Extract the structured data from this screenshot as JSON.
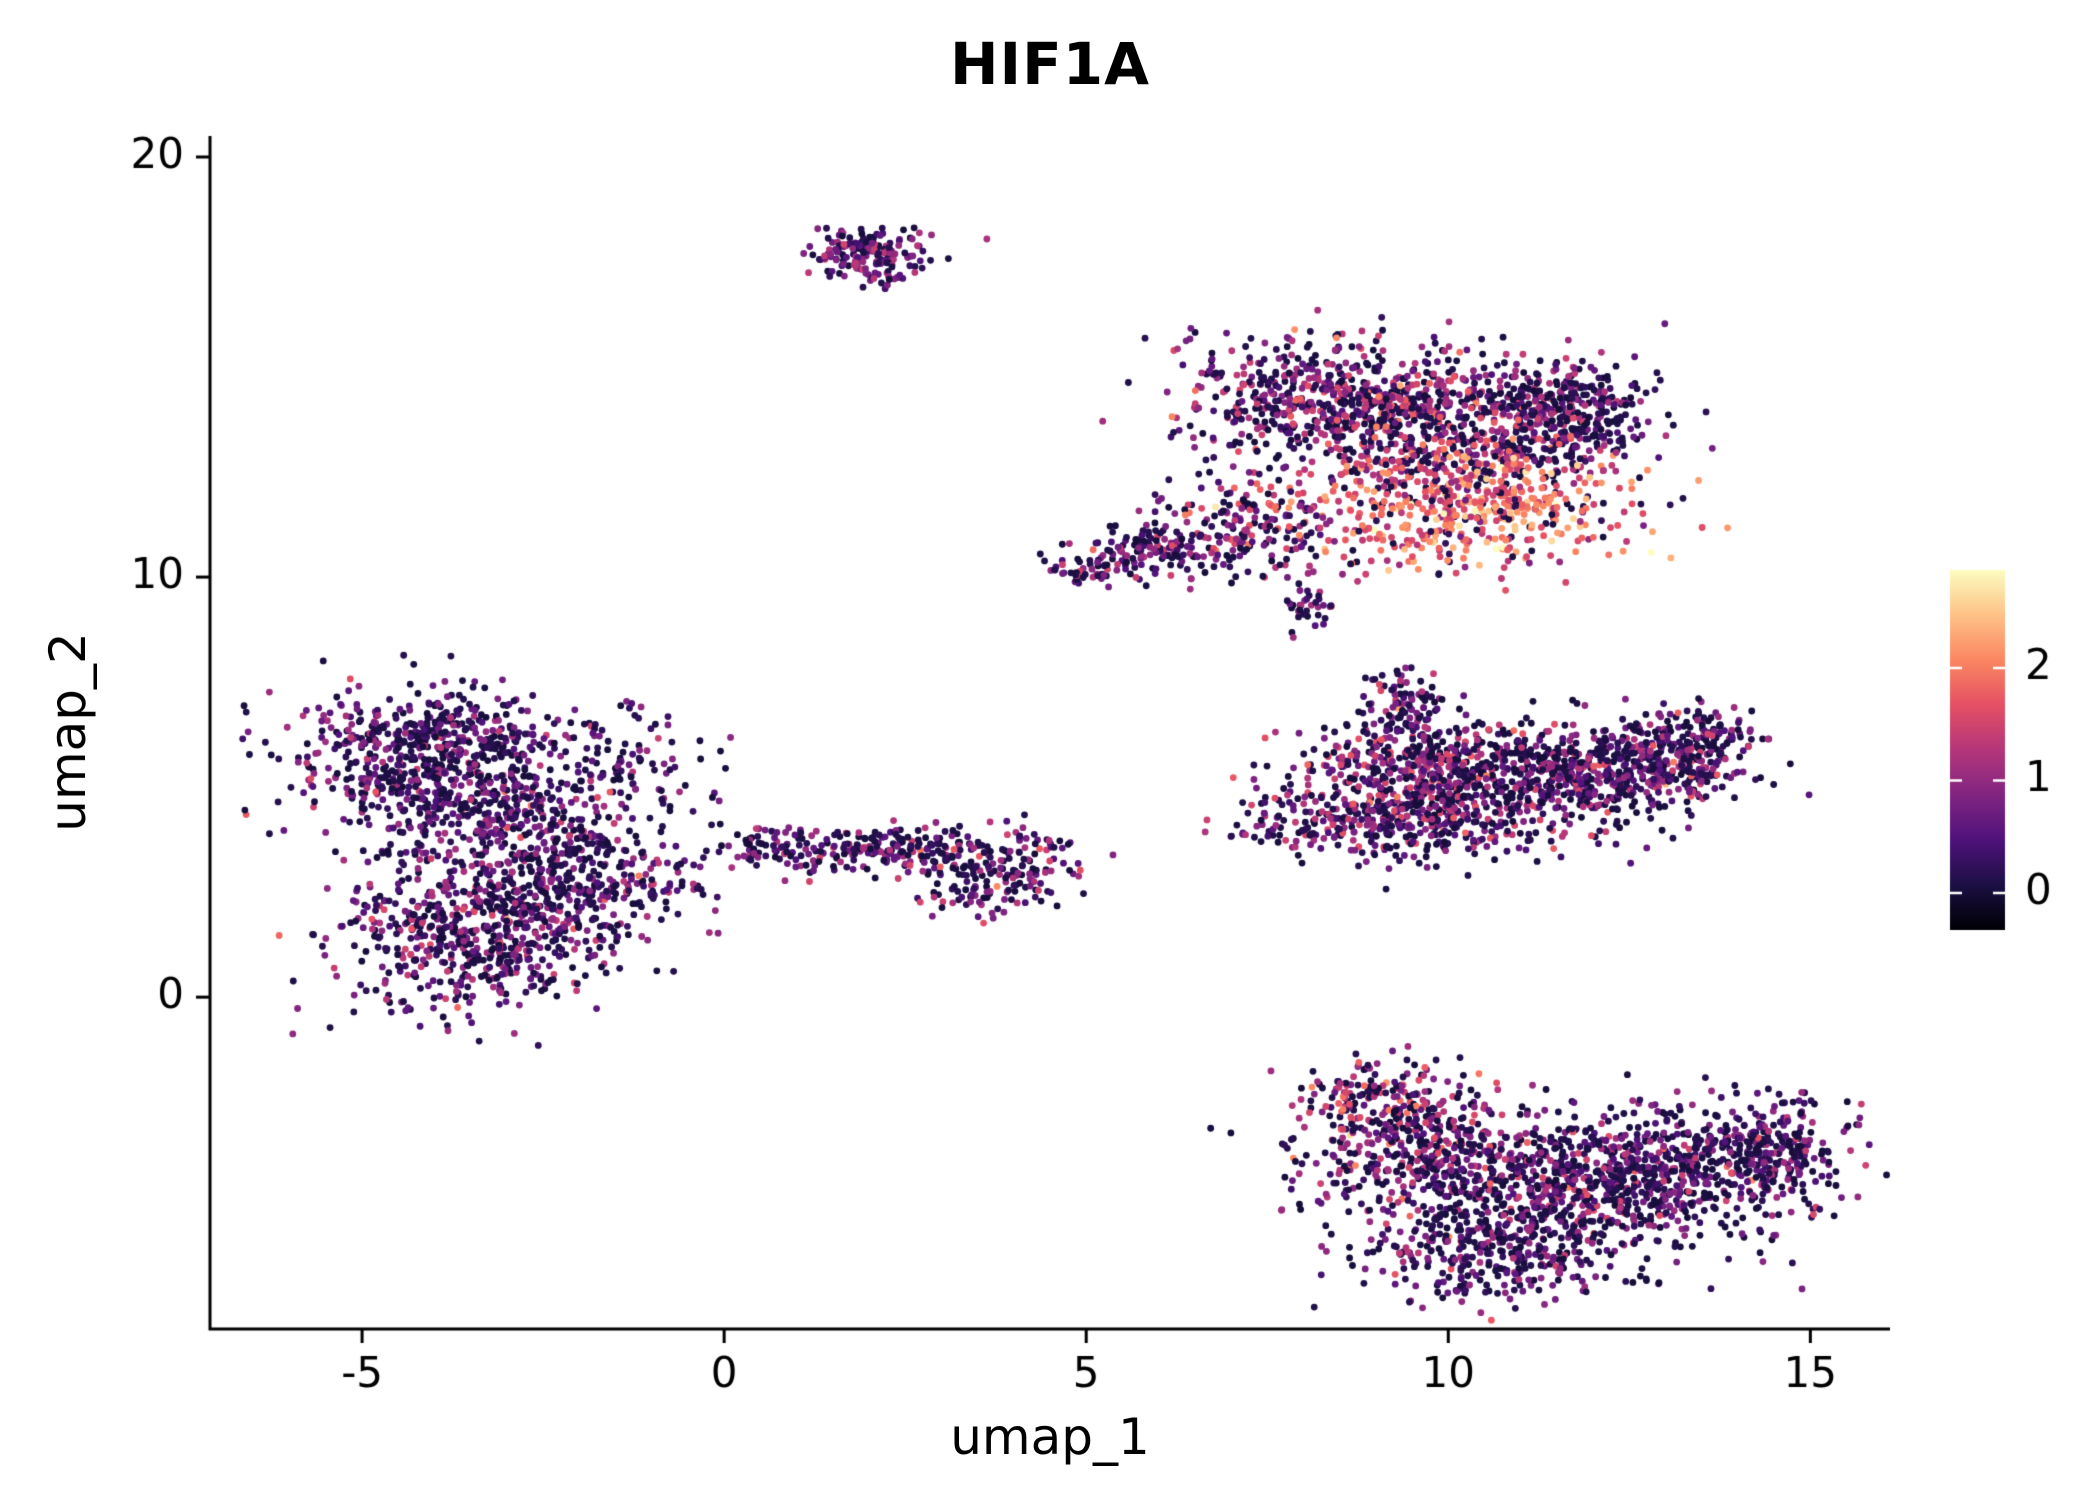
{
  "colors": {
    "background": "#ffffff",
    "axis": "#000000",
    "text": "#000000",
    "colorbar_tick": "#ffffff"
  },
  "chart_data": {
    "type": "scatter",
    "title": "HIF1A",
    "xlabel": "umap_1",
    "ylabel": "umap_2",
    "xlim": [
      -7.1,
      16.1
    ],
    "ylim": [
      -7.9,
      20.5
    ],
    "x_ticks": [
      -5,
      0,
      5,
      10,
      15
    ],
    "y_ticks": [
      0,
      10,
      20
    ],
    "grid": false,
    "point_radius": 3.4,
    "seed": 42,
    "colorbar": {
      "position": "right",
      "label_values": [
        0,
        1,
        2
      ],
      "value_min": -0.33,
      "value_max": 2.87,
      "colormap": "magma",
      "stops": [
        [
          0,
          0,
          4
        ],
        [
          28,
          16,
          68
        ],
        [
          79,
          18,
          123
        ],
        [
          129,
          37,
          129
        ],
        [
          181,
          54,
          122
        ],
        [
          229,
          80,
          100
        ],
        [
          251,
          135,
          97
        ],
        [
          254,
          194,
          135
        ],
        [
          252,
          253,
          191
        ]
      ]
    },
    "clusters_note": "UMAP feature plot of HIF1A expression; points generated from cluster blob parameters (cx,cy = cluster center in umap coords; sx,sy = gaussian spread; n = points; z = fraction near-zero expression; m,s = mean/sd of expressed values on 0-2.9 scale)",
    "blobs": [
      {
        "cluster": "top-island",
        "n": 160,
        "cx": 2.0,
        "cy": 17.75,
        "sx": 0.38,
        "sy": 0.28,
        "z": 0.35,
        "m": 0.85,
        "s": 0.35
      },
      {
        "cluster": "top-island",
        "n": 25,
        "cx": 2.1,
        "cy": 17.15,
        "sx": 0.22,
        "sy": 0.15,
        "z": 0.35,
        "m": 0.85,
        "s": 0.35
      },
      {
        "cluster": "upper-right-main",
        "n": 550,
        "cx": 8.3,
        "cy": 14.2,
        "sx": 1.0,
        "sy": 0.75,
        "z": 0.4,
        "m": 0.95,
        "s": 0.45
      },
      {
        "cluster": "upper-right-main",
        "n": 450,
        "cx": 10.2,
        "cy": 13.6,
        "sx": 1.0,
        "sy": 0.8,
        "z": 0.35,
        "m": 1.1,
        "s": 0.5
      },
      {
        "cluster": "upper-right-main",
        "n": 300,
        "cx": 11.6,
        "cy": 13.9,
        "sx": 0.65,
        "sy": 0.6,
        "z": 0.55,
        "m": 0.7,
        "s": 0.45
      },
      {
        "cluster": "upper-right-main",
        "n": 550,
        "cx": 10.2,
        "cy": 11.7,
        "sx": 1.25,
        "sy": 0.75,
        "z": 0.15,
        "m": 1.8,
        "s": 0.5
      },
      {
        "cluster": "upper-right-main",
        "n": 180,
        "cx": 7.3,
        "cy": 11.2,
        "sx": 0.8,
        "sy": 0.6,
        "z": 0.35,
        "m": 1.0,
        "s": 0.5
      },
      {
        "cluster": "upper-right-tail",
        "n": 120,
        "cx": 6.0,
        "cy": 10.6,
        "sx": 0.55,
        "sy": 0.35,
        "z": 0.4,
        "m": 0.9,
        "s": 0.4
      },
      {
        "cluster": "upper-right-tail",
        "n": 50,
        "cx": 5.0,
        "cy": 10.25,
        "sx": 0.3,
        "sy": 0.2,
        "z": 0.4,
        "m": 0.9,
        "s": 0.4
      },
      {
        "cluster": "small-mid-island",
        "n": 35,
        "cx": 8.1,
        "cy": 9.3,
        "sx": 0.22,
        "sy": 0.28,
        "z": 0.4,
        "m": 0.8,
        "s": 0.4
      },
      {
        "cluster": "left-main",
        "n": 600,
        "cx": -4.2,
        "cy": 5.9,
        "sx": 0.95,
        "sy": 0.85,
        "z": 0.5,
        "m": 0.75,
        "s": 0.4
      },
      {
        "cluster": "left-main",
        "n": 350,
        "cx": -3.2,
        "cy": 4.3,
        "sx": 1.0,
        "sy": 0.8,
        "z": 0.5,
        "m": 0.75,
        "s": 0.4
      },
      {
        "cluster": "left-main",
        "n": 650,
        "cx": -3.4,
        "cy": 1.6,
        "sx": 0.95,
        "sy": 0.95,
        "z": 0.45,
        "m": 0.8,
        "s": 0.45
      },
      {
        "cluster": "left-main",
        "n": 200,
        "cx": -1.9,
        "cy": 2.9,
        "sx": 0.7,
        "sy": 0.7,
        "z": 0.5,
        "m": 0.7,
        "s": 0.4
      },
      {
        "cluster": "left-main",
        "n": 90,
        "cx": -1.3,
        "cy": 5.6,
        "sx": 0.6,
        "sy": 0.7,
        "z": 0.55,
        "m": 0.7,
        "s": 0.4
      },
      {
        "cluster": "left-main",
        "n": 40,
        "cx": -0.9,
        "cy": 2.8,
        "sx": 0.45,
        "sy": 0.5,
        "z": 0.5,
        "m": 0.7,
        "s": 0.4
      },
      {
        "cluster": "middle-band",
        "n": 140,
        "cx": 1.6,
        "cy": 3.5,
        "sx": 0.75,
        "sy": 0.28,
        "z": 0.45,
        "m": 0.8,
        "s": 0.4
      },
      {
        "cluster": "middle-band",
        "n": 110,
        "cx": 3.0,
        "cy": 3.4,
        "sx": 0.55,
        "sy": 0.3,
        "z": 0.45,
        "m": 0.8,
        "s": 0.4
      },
      {
        "cluster": "middle-band",
        "n": 110,
        "cx": 4.1,
        "cy": 3.1,
        "sx": 0.45,
        "sy": 0.45,
        "z": 0.45,
        "m": 0.85,
        "s": 0.45
      },
      {
        "cluster": "middle-band",
        "n": 40,
        "cx": 3.4,
        "cy": 2.4,
        "sx": 0.3,
        "sy": 0.25,
        "z": 0.45,
        "m": 0.8,
        "s": 0.4
      },
      {
        "cluster": "middle-band",
        "n": 25,
        "cx": 0.6,
        "cy": 3.6,
        "sx": 0.3,
        "sy": 0.2,
        "z": 0.45,
        "m": 0.8,
        "s": 0.4
      },
      {
        "cluster": "right-mid",
        "n": 90,
        "cx": 9.4,
        "cy": 6.9,
        "sx": 0.35,
        "sy": 0.45,
        "z": 0.4,
        "m": 0.9,
        "s": 0.45
      },
      {
        "cluster": "right-mid",
        "n": 450,
        "cx": 9.8,
        "cy": 5.3,
        "sx": 0.9,
        "sy": 0.7,
        "z": 0.4,
        "m": 0.95,
        "s": 0.45
      },
      {
        "cluster": "right-mid",
        "n": 500,
        "cx": 11.5,
        "cy": 5.2,
        "sx": 1.1,
        "sy": 0.75,
        "z": 0.45,
        "m": 0.85,
        "s": 0.45
      },
      {
        "cluster": "right-mid",
        "n": 300,
        "cx": 12.9,
        "cy": 5.6,
        "sx": 0.7,
        "sy": 0.55,
        "z": 0.5,
        "m": 0.8,
        "s": 0.4
      },
      {
        "cluster": "right-mid",
        "n": 300,
        "cx": 9.0,
        "cy": 4.2,
        "sx": 0.9,
        "sy": 0.5,
        "z": 0.45,
        "m": 0.9,
        "s": 0.45
      },
      {
        "cluster": "right-mid",
        "n": 60,
        "cx": 13.5,
        "cy": 6.3,
        "sx": 0.4,
        "sy": 0.3,
        "z": 0.5,
        "m": 0.8,
        "s": 0.4
      },
      {
        "cluster": "bottom-right",
        "n": 350,
        "cx": 9.4,
        "cy": -3.3,
        "sx": 0.8,
        "sy": 0.8,
        "z": 0.4,
        "m": 1.0,
        "s": 0.5
      },
      {
        "cluster": "bottom-right",
        "n": 600,
        "cx": 11.0,
        "cy": -4.6,
        "sx": 1.2,
        "sy": 0.9,
        "z": 0.45,
        "m": 0.85,
        "s": 0.45
      },
      {
        "cluster": "bottom-right",
        "n": 550,
        "cx": 13.0,
        "cy": -4.2,
        "sx": 1.1,
        "sy": 0.8,
        "z": 0.5,
        "m": 0.8,
        "s": 0.45
      },
      {
        "cluster": "bottom-right",
        "n": 220,
        "cx": 14.4,
        "cy": -3.6,
        "sx": 0.55,
        "sy": 0.6,
        "z": 0.5,
        "m": 0.8,
        "s": 0.4
      },
      {
        "cluster": "bottom-right",
        "n": 250,
        "cx": 10.6,
        "cy": -6.2,
        "sx": 0.9,
        "sy": 0.5,
        "z": 0.5,
        "m": 0.75,
        "s": 0.4
      },
      {
        "cluster": "bottom-right",
        "n": 80,
        "cx": 9.0,
        "cy": -2.2,
        "sx": 0.5,
        "sy": 0.35,
        "z": 0.35,
        "m": 1.1,
        "s": 0.5
      }
    ]
  }
}
